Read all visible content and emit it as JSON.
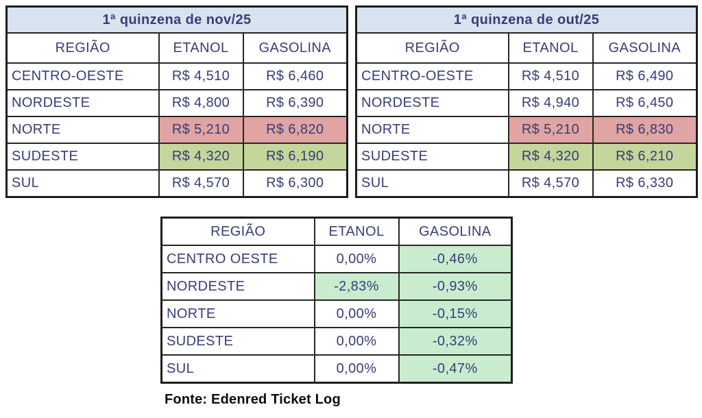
{
  "colors": {
    "title_bar_bg": "#d9e3f0",
    "navy_text": "#373d76",
    "title_text": "#1b266e",
    "highest_price_fill_pink": "#e0a4a2",
    "lowest_price_fill_olive": "#c3d69b",
    "negative_change_fill_mint": "#c9eccf",
    "negative_change_text_green": "#1e7a41",
    "border": "#1c1c1c",
    "footer_text": "#0a0a0a"
  },
  "chart_data": [
    {
      "type": "table",
      "title": "1ª quinzena de nov/25",
      "columns": [
        "REGIÃO",
        "ETANOL",
        "GASOLINA"
      ],
      "rows": [
        [
          "CENTRO-OESTE",
          "R$ 4,510",
          "R$ 6,460"
        ],
        [
          "NORDESTE",
          "R$ 4,800",
          "R$ 6,390"
        ],
        [
          "NORTE",
          "R$ 5,210",
          "R$ 6,820"
        ],
        [
          "SUDESTE",
          "R$ 4,320",
          "R$ 6,190"
        ],
        [
          "SUL",
          "R$ 4,570",
          "R$ 6,300"
        ]
      ],
      "highlights": {
        "pink_highest_region": "NORTE",
        "olive_lowest_region": "SUDESTE"
      }
    },
    {
      "type": "table",
      "title": "1ª quinzena de out/25",
      "columns": [
        "REGIÃO",
        "ETANOL",
        "GASOLINA"
      ],
      "rows": [
        [
          "CENTRO-OESTE",
          "R$ 4,510",
          "R$ 6,490"
        ],
        [
          "NORDESTE",
          "R$ 4,940",
          "R$ 6,450"
        ],
        [
          "NORTE",
          "R$ 5,210",
          "R$ 6,830"
        ],
        [
          "SUDESTE",
          "R$ 4,320",
          "R$ 6,210"
        ],
        [
          "SUL",
          "R$ 4,570",
          "R$ 6,330"
        ]
      ],
      "highlights": {
        "pink_highest_region": "NORTE",
        "olive_lowest_region": "SUDESTE"
      }
    },
    {
      "type": "table",
      "title": "",
      "columns": [
        "REGIÃO",
        "ETANOL",
        "GASOLINA"
      ],
      "rows": [
        [
          "CENTRO OESTE",
          "0,00%",
          "-0,46%"
        ],
        [
          "NORDESTE",
          "-2,83%",
          "-0,93%"
        ],
        [
          "NORTE",
          "0,00%",
          "-0,15%"
        ],
        [
          "SUDESTE",
          "0,00%",
          "-0,32%"
        ],
        [
          "SUL",
          "0,00%",
          "-0,47%"
        ]
      ],
      "highlights": {
        "mint_cells_negative_change": [
          "CENTRO OESTE gasolina",
          "NORDESTE etanol",
          "NORDESTE gasolina",
          "NORTE gasolina",
          "SUDESTE gasolina",
          "SUL gasolina"
        ]
      }
    }
  ],
  "footer": {
    "source_label": "Fonte: Edenred Ticket Log"
  }
}
